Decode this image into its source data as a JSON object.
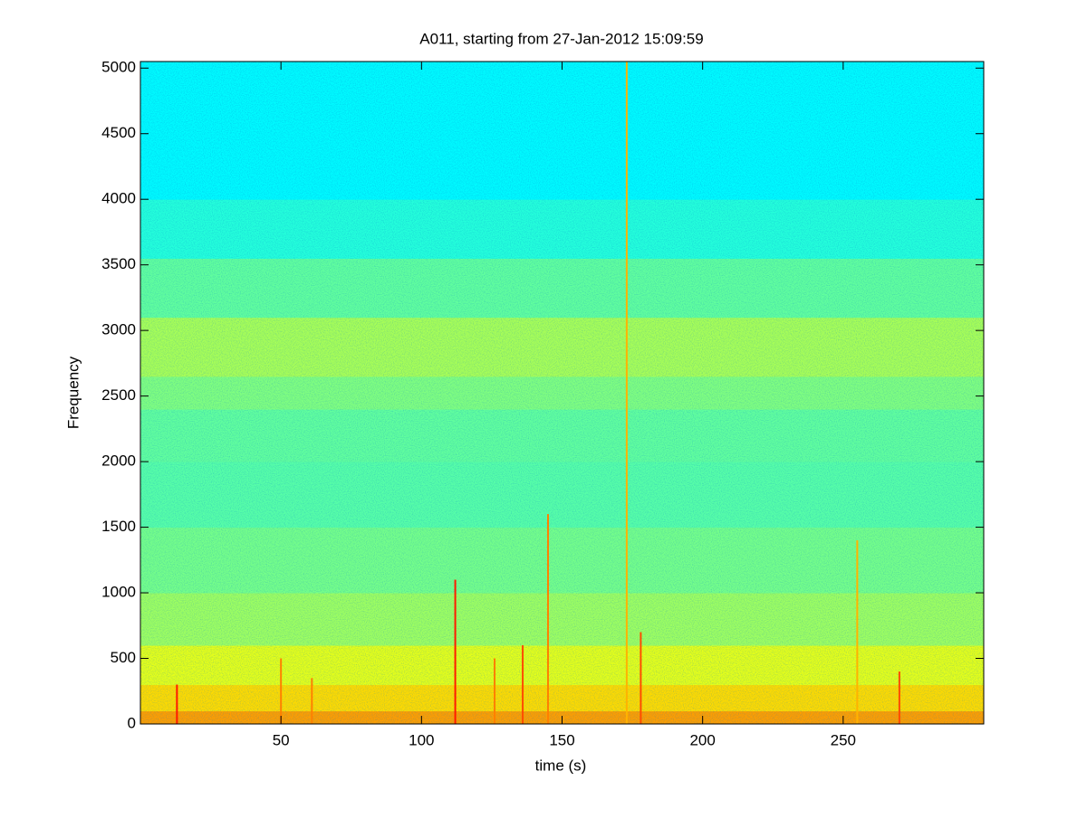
{
  "chart_data": {
    "type": "spectrogram",
    "title": "A011, starting from 27-Jan-2012 15:09:59",
    "x_label": "time (s)",
    "y_label": "Frequency",
    "xlim": [
      0,
      300
    ],
    "xticks": [
      50,
      100,
      150,
      200,
      250
    ],
    "ylim": [
      0,
      5050
    ],
    "yticks": [
      0,
      500,
      1000,
      1500,
      2000,
      2500,
      3000,
      3500,
      4000,
      4500,
      5000
    ],
    "colormap": "jet",
    "clim": [
      0,
      1
    ],
    "bands": {
      "bins": [
        0,
        100,
        300,
        600,
        1000,
        1500,
        2000,
        2400,
        2650,
        3100,
        3550,
        4000,
        5050
      ],
      "values": [
        0.72,
        0.66,
        0.6,
        0.53,
        0.49,
        0.46,
        0.47,
        0.5,
        0.54,
        0.47,
        0.41,
        0.37
      ]
    },
    "events": {
      "x": [
        13,
        50,
        61,
        112,
        126,
        136,
        145,
        173,
        178,
        255,
        270
      ],
      "top": [
        300,
        500,
        350,
        1100,
        500,
        600,
        1600,
        5050,
        700,
        1400,
        400
      ],
      "values": [
        0.85,
        0.75,
        0.75,
        0.85,
        0.75,
        0.8,
        0.75,
        0.7,
        0.8,
        0.7,
        0.8
      ]
    }
  }
}
